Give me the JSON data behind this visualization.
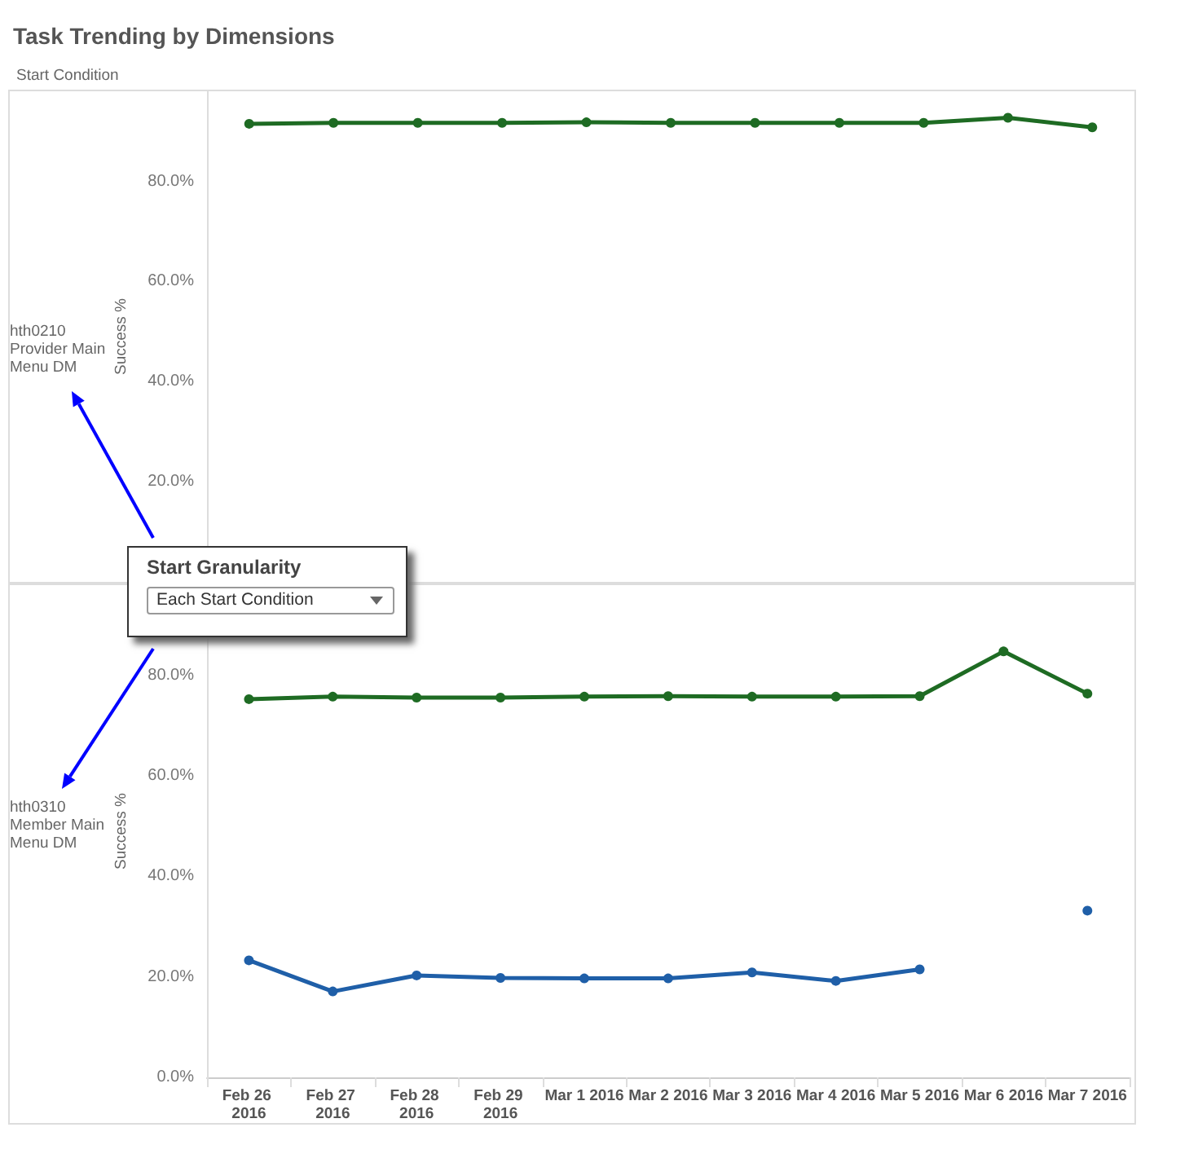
{
  "chart_data": [
    {
      "type": "line",
      "title": "Task Trending by Dimensions",
      "annotations": [
        "Start Condition",
        "hth0210 Provider Main Menu DM",
        "Start Granularity",
        "Each Start Condition"
      ],
      "ylabel": "Success %",
      "categories": [
        "Feb 26 2016",
        "Feb 27 2016",
        "Feb 28 2016",
        "Feb 29 2016",
        "Mar 1 2016",
        "Mar 2 2016",
        "Mar 3 2016",
        "Mar 4 2016",
        "Mar 5 2016",
        "Mar 6 2016",
        "Mar 7 2016"
      ],
      "series": [
        {
          "color": "#1e6b23",
          "values": [
            91.5,
            91.7,
            91.7,
            91.7,
            91.8,
            91.7,
            91.7,
            91.7,
            91.7,
            92.7,
            90.8
          ]
        }
      ],
      "ylim": [
        0,
        98
      ],
      "yticks": [
        {
          "value": 20,
          "label": "20.0%"
        },
        {
          "value": 40,
          "label": "40.0%"
        },
        {
          "value": 60,
          "label": "60.0%"
        },
        {
          "value": 80,
          "label": "80.0%"
        }
      ],
      "grid": false,
      "marker": "circle",
      "tick_labels": "y"
    },
    {
      "type": "line",
      "annotations": [
        "hth0310 Member Main Menu DM"
      ],
      "ylabel": "Success %",
      "categories": [
        "Feb 26 2016",
        "Feb 27 2016",
        "Feb 28 2016",
        "Feb 29 2016",
        "Mar 1 2016",
        "Mar 2 2016",
        "Mar 3 2016",
        "Mar 4 2016",
        "Mar 5 2016",
        "Mar 6 2016",
        "Mar 7 2016"
      ],
      "series": [
        {
          "color": "#1e6b23",
          "values": [
            75.3,
            75.8,
            75.6,
            75.6,
            75.8,
            75.9,
            75.8,
            75.8,
            75.9,
            84.8,
            76.4
          ]
        },
        {
          "color": "#1f5fa8",
          "values": [
            23.3,
            17.1,
            20.3,
            19.8,
            19.7,
            19.7,
            20.9,
            19.2,
            21.5,
            null,
            33.2
          ]
        }
      ],
      "ylim": [
        0,
        98
      ],
      "yticks": [
        {
          "value": 0,
          "label": "0.0%"
        },
        {
          "value": 20,
          "label": "20.0%"
        },
        {
          "value": 40,
          "label": "40.0%"
        },
        {
          "value": 60,
          "label": "60.0%"
        },
        {
          "value": 80,
          "label": "80.0%"
        }
      ],
      "grid": false,
      "marker": "circle"
    }
  ]
}
